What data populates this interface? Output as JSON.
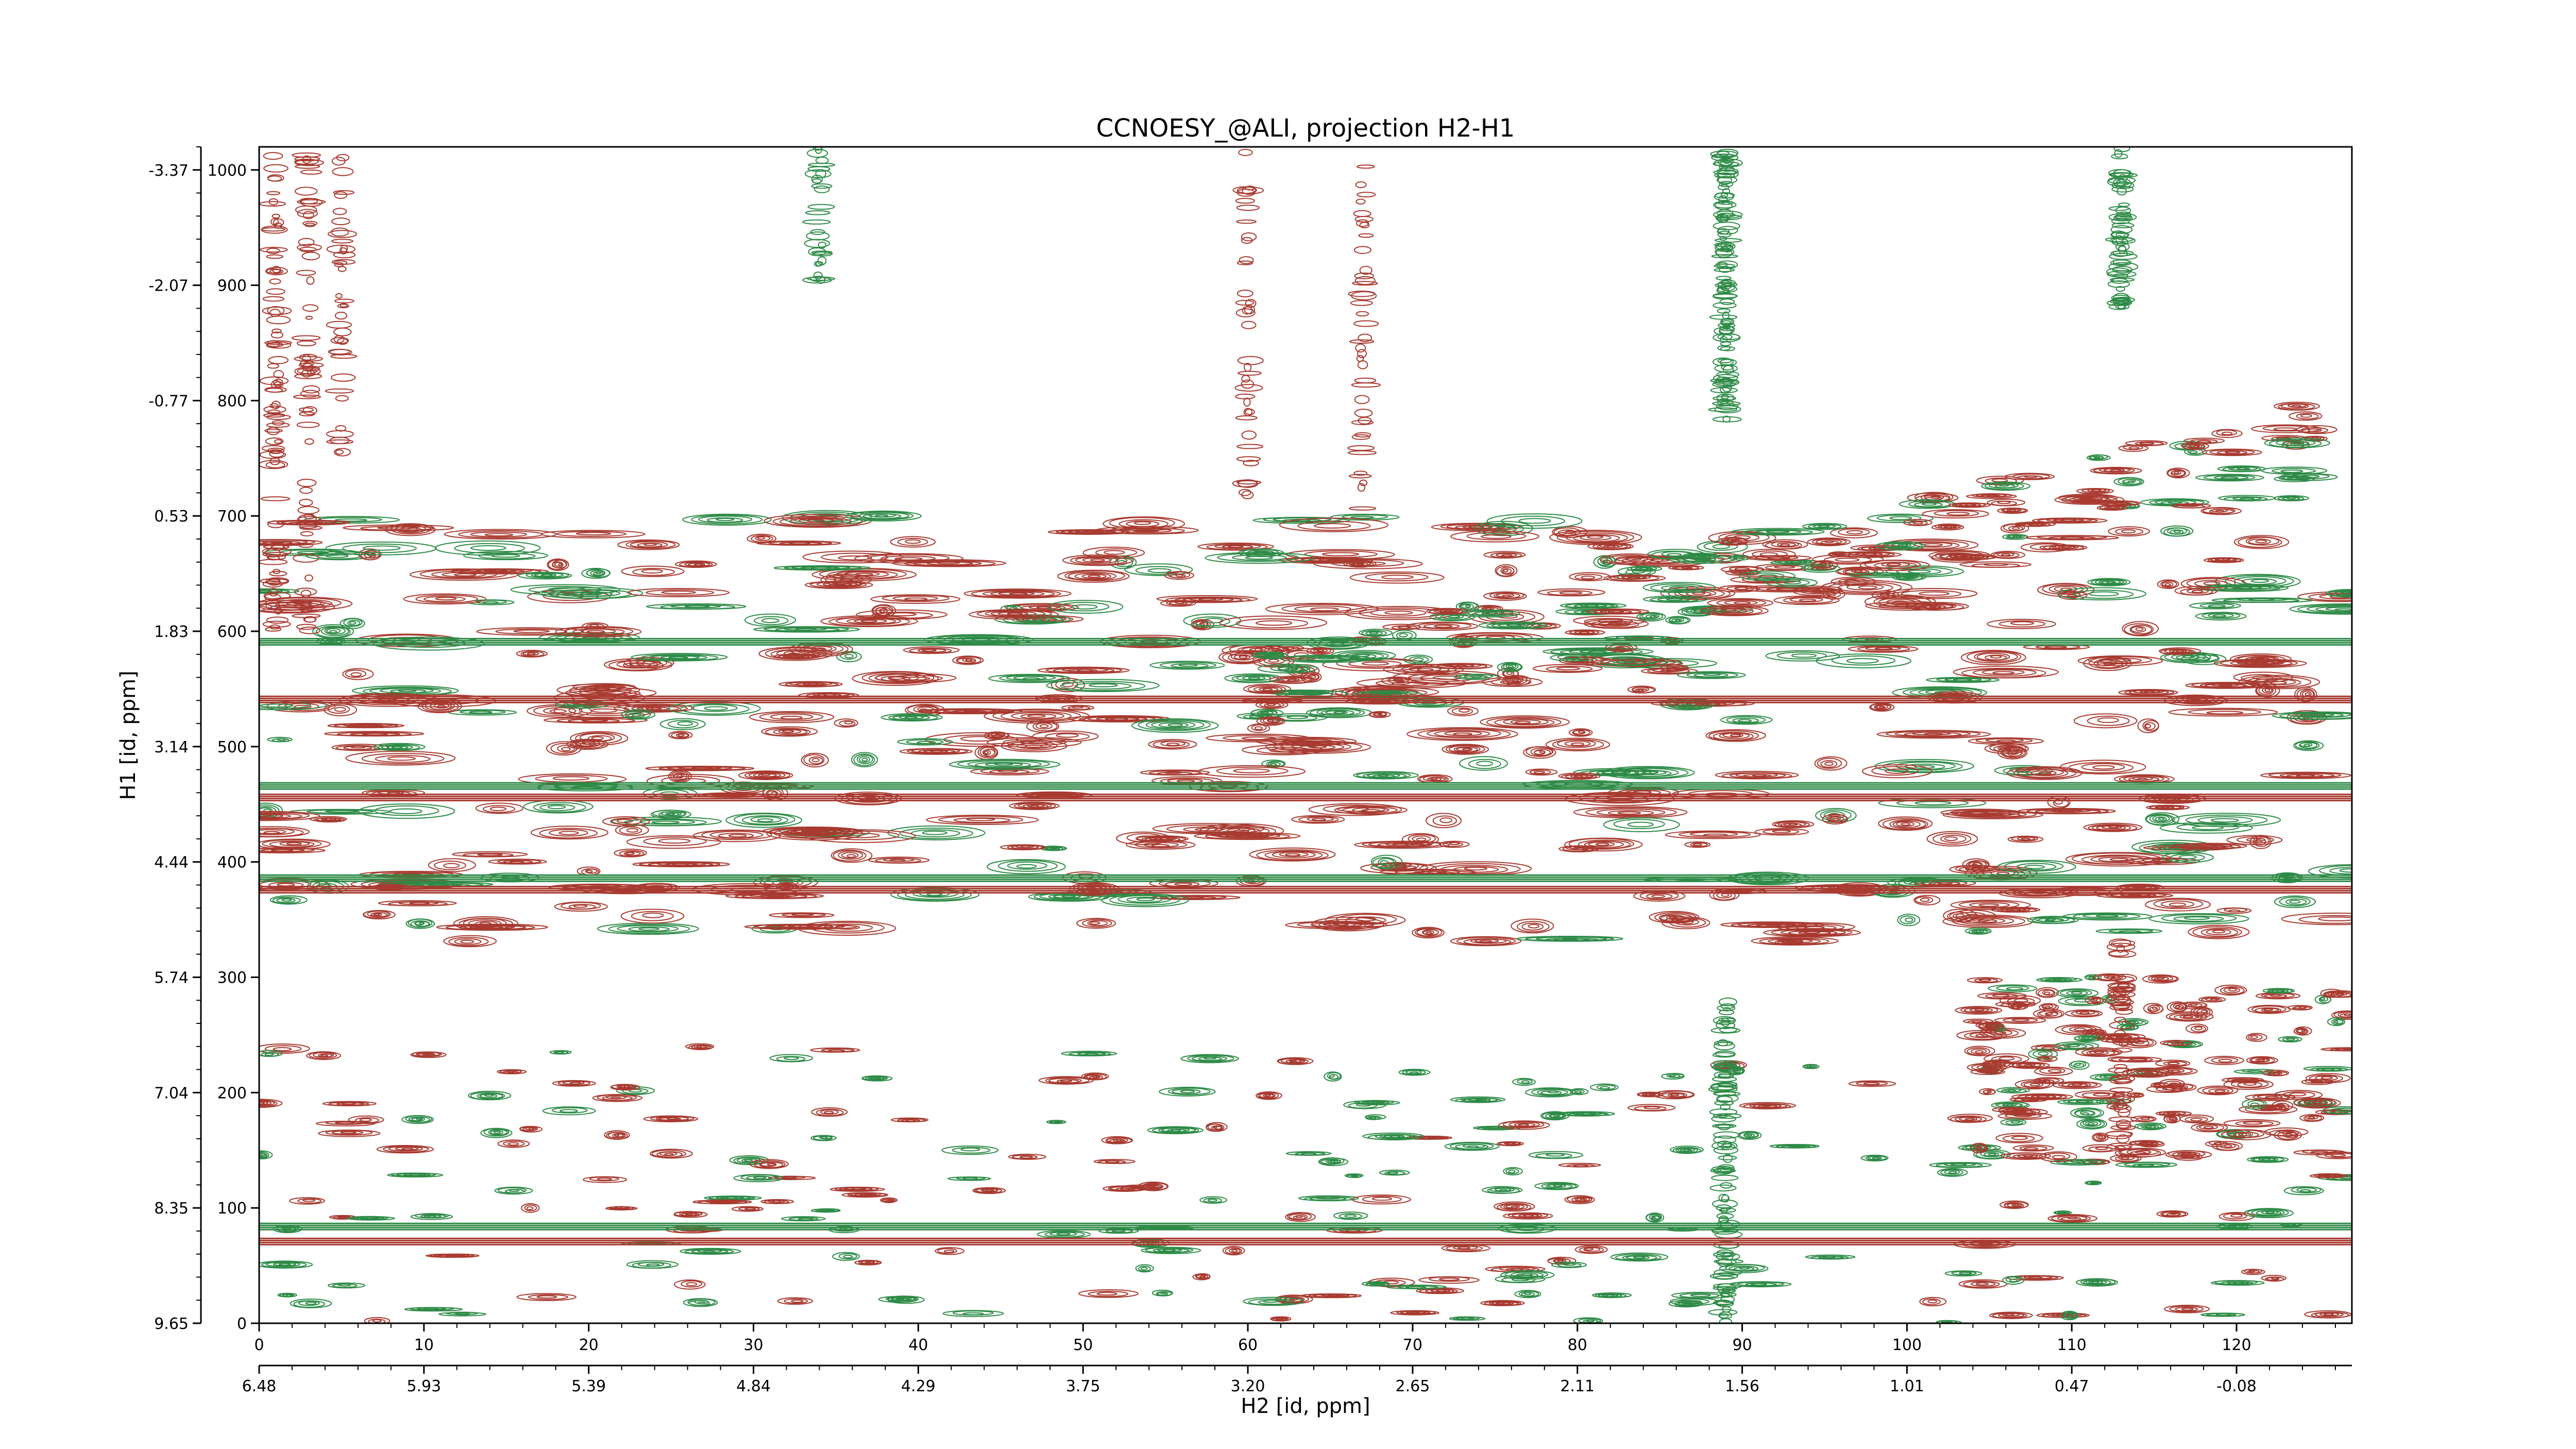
{
  "chart_data": {
    "type": "heatmap",
    "subtype": "nmr-2d-contour",
    "title": "CCNOESY_@ALI, projection H2-H1",
    "xlabel": "H2 [id, ppm]",
    "ylabel": "H1 [id, ppm]",
    "x_index_range": [
      0,
      127
    ],
    "y_index_range": [
      0,
      1020
    ],
    "x_index_ticks": [
      0,
      10,
      20,
      30,
      40,
      50,
      60,
      70,
      80,
      90,
      100,
      110,
      120
    ],
    "x_ppm_ticks": [
      "6.48",
      "5.93",
      "5.39",
      "4.84",
      "4.29",
      "3.75",
      "3.20",
      "2.65",
      "2.11",
      "1.56",
      "1.01",
      "0.47",
      "-0.08"
    ],
    "y_index_ticks": [
      0,
      100,
      200,
      300,
      400,
      500,
      600,
      700,
      800,
      900,
      1000
    ],
    "y_ppm_ticks": [
      "9.65",
      "8.35",
      "7.04",
      "5.74",
      "4.44",
      "3.14",
      "1.83",
      "0.53",
      "-0.77",
      "-2.07",
      "-3.37"
    ],
    "contour_colors": {
      "positive": "#a83a30",
      "negative": "#2e8b47"
    },
    "horizontal_bands_y_index": [
      70,
      83,
      375,
      385,
      455,
      465,
      540,
      590
    ],
    "vertical_bands_x_index": [
      1,
      3,
      5,
      34,
      60,
      67,
      89,
      113
    ],
    "grid": false,
    "legend": "none"
  }
}
